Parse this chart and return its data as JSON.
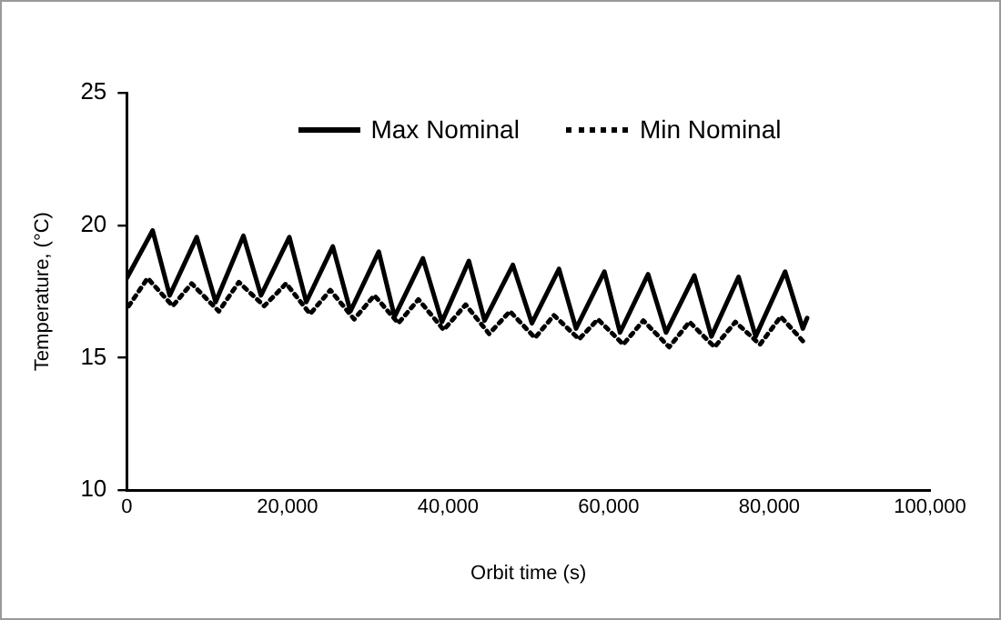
{
  "chart_data": {
    "type": "line",
    "xlabel": "Orbit time (s)",
    "ylabel": "Temperature, (°C)",
    "xlim": [
      0,
      100000
    ],
    "xticks": [
      0,
      {
        "value": 20000,
        "label": "20,000"
      },
      {
        "value": 40000,
        "label": "40,000"
      },
      {
        "value": 60000,
        "label": "60,000"
      },
      {
        "value": 80000,
        "label": "80,000"
      },
      {
        "value": 100000,
        "label": "100,000"
      }
    ],
    "ylim": [
      10,
      25
    ],
    "yticks": [
      10,
      15,
      20,
      25
    ],
    "grid": false,
    "legend": "top",
    "marker": "none",
    "series": [
      {
        "name": "Max Nominal",
        "color": "#000000",
        "line_style": "solid",
        "x": [
          0,
          3220,
          5340,
          8710,
          11060,
          14520,
          16710,
          20240,
          22350,
          25650,
          27840,
          31370,
          33340,
          36870,
          39230,
          42590,
          44540,
          48070,
          50430,
          53810,
          55930,
          59460,
          61410,
          64900,
          67130,
          70660,
          72780,
          76170,
          78290,
          81960,
          84170,
          84700
        ],
        "values": [
          18.0,
          19.8,
          17.35,
          19.55,
          17.1,
          19.6,
          17.35,
          19.55,
          17.1,
          19.2,
          16.75,
          19.0,
          16.55,
          18.75,
          16.35,
          18.65,
          16.4,
          18.5,
          16.3,
          18.35,
          16.1,
          18.25,
          15.95,
          18.15,
          15.95,
          18.1,
          15.8,
          18.05,
          15.8,
          18.25,
          16.1,
          16.5
        ]
      },
      {
        "name": "Min Nominal",
        "color": "#000000",
        "line_style": "dotted",
        "x": [
          240,
          2590,
          5720,
          8070,
          11460,
          13950,
          17110,
          19840,
          22820,
          25340,
          28310,
          30820,
          33810,
          36310,
          39460,
          42190,
          45110,
          47700,
          50820,
          53180,
          56310,
          58660,
          61810,
          64310,
          67530,
          70050,
          73180,
          75770,
          78830,
          81420,
          84550
        ],
        "values": [
          16.95,
          18.0,
          16.95,
          17.8,
          16.75,
          17.85,
          16.95,
          17.8,
          16.65,
          17.55,
          16.45,
          17.35,
          16.3,
          17.2,
          16.05,
          17.0,
          15.9,
          16.75,
          15.75,
          16.6,
          15.7,
          16.45,
          15.5,
          16.4,
          15.4,
          16.35,
          15.4,
          16.35,
          15.5,
          16.55,
          15.5
        ]
      }
    ]
  }
}
